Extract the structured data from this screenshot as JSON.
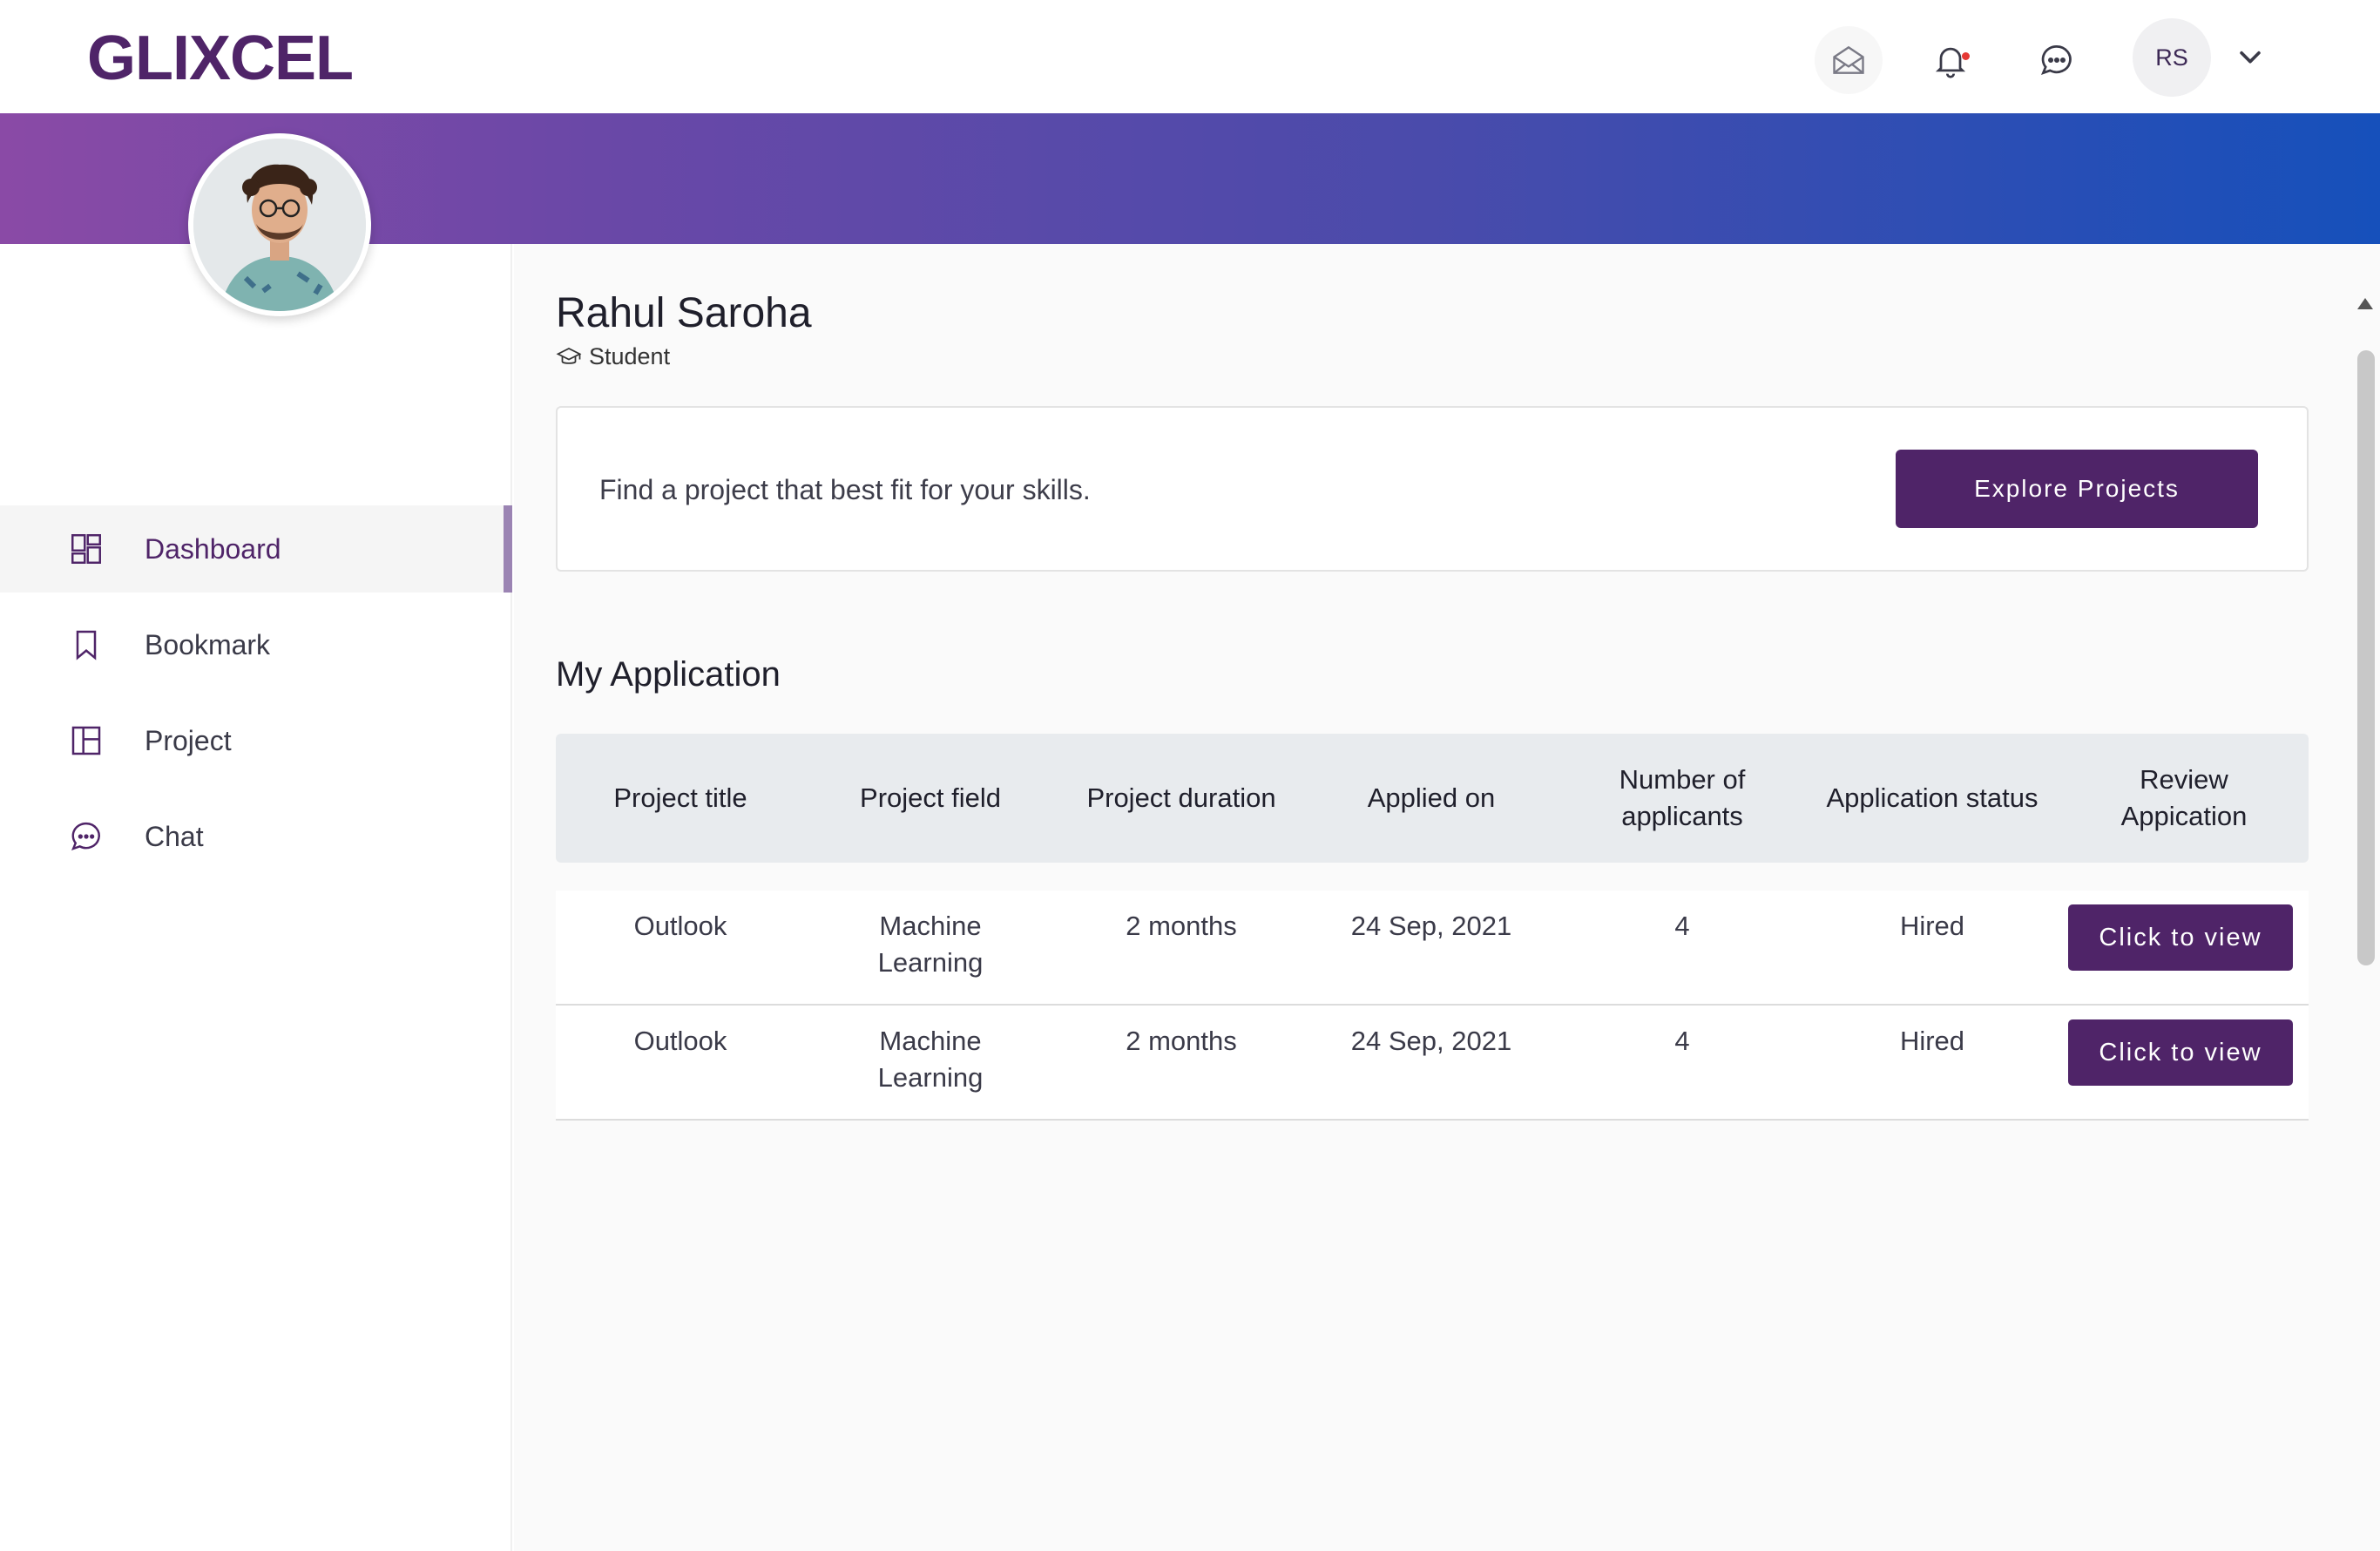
{
  "header": {
    "logo": "GLIXCEL",
    "avatar_initials": "RS",
    "icons": [
      "mail-icon",
      "bell-icon",
      "chat-bubble-icon",
      "chevron-down-icon"
    ]
  },
  "sidebar": {
    "items": [
      {
        "label": "Dashboard",
        "icon": "dashboard-icon",
        "active": true
      },
      {
        "label": "Bookmark",
        "icon": "bookmark-icon",
        "active": false
      },
      {
        "label": "Project",
        "icon": "project-icon",
        "active": false
      },
      {
        "label": "Chat",
        "icon": "chat-icon",
        "active": false
      }
    ]
  },
  "profile": {
    "name": "Rahul Saroha",
    "role": "Student"
  },
  "promo": {
    "text": "Find a project that best fit for your skills.",
    "button_label": "Explore Projects"
  },
  "applications": {
    "title": "My Application",
    "columns": [
      "Project title",
      "Project field",
      "Project duration",
      "Applied on",
      "Number of applicants",
      "Application status",
      "Review Appication"
    ],
    "rows": [
      {
        "title": "Outlook",
        "field": "Machine Learning",
        "duration": "2 months",
        "applied_on": "24 Sep, 2021",
        "applicants": "4",
        "status": "Hired",
        "action": "Click to view"
      },
      {
        "title": "Outlook",
        "field": "Machine Learning",
        "duration": "2 months",
        "applied_on": "24 Sep, 2021",
        "applicants": "4",
        "status": "Hired",
        "action": "Click to view"
      }
    ]
  },
  "colors": {
    "brand": "#4f2468",
    "banner_start": "#8a4aa6",
    "banner_end": "#1650bb",
    "notification_dot": "#e53935"
  }
}
